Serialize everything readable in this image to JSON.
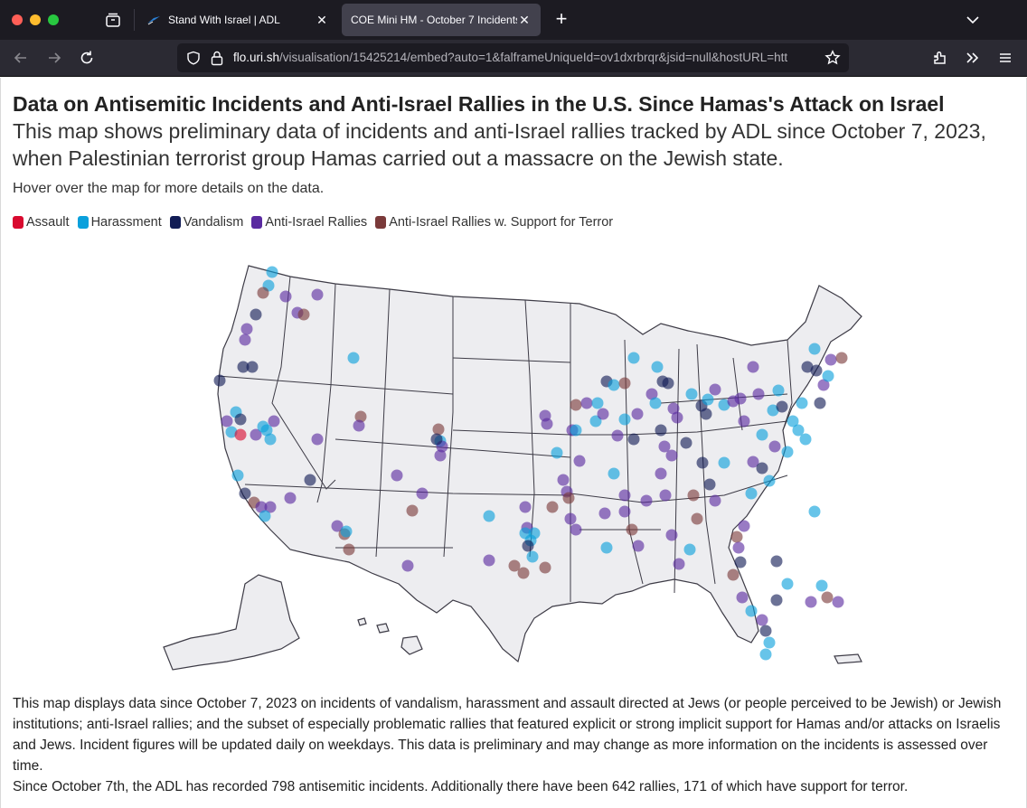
{
  "browser": {
    "tabs": [
      {
        "label": "Stand With Israel | ADL",
        "active": false
      },
      {
        "label": "COE Mini HM - October 7 Incidents",
        "active": true
      }
    ],
    "url_host": "flo.uri.sh",
    "url_path": "/visualisation/15425214/embed?auto=1&falframeUniqueId=ov1dxrbrqr&jsid=null&hostURL=htt"
  },
  "page": {
    "title": "Data on Antisemitic Incidents and Anti-Israel Rallies in the U.S. Since Hamas's Attack on Israel",
    "subtitle": "This map shows preliminary data of incidents and anti-Israel rallies tracked by ADL since October 7, 2023, when Palestinian terrorist group Hamas carried out a massacre on the Jewish state.",
    "hover_note": "Hover over the map for more details on the data.",
    "legend": [
      {
        "label": "Assault",
        "color": "#d90a2f"
      },
      {
        "label": "Harassment",
        "color": "#0aa0dc"
      },
      {
        "label": "Vandalism",
        "color": "#111c55"
      },
      {
        "label": "Anti-Israel Rallies",
        "color": "#5a2aa0"
      },
      {
        "label": "Anti-Israel Rallies w. Support for Terror",
        "color": "#7a3a3a"
      }
    ],
    "description": "This map displays data since October 7, 2023 on incidents of vandalism, harassment and assault directed at Jews (or people perceived to be Jewish) or Jewish institutions; anti-Israel rallies; and the subset of especially problematic rallies that featured explicit or strong implicit support for Hamas and/or attacks on Israelis and Jews. Incident figures will be updated daily on weekdays. This data is preliminary and may change as more information on the incidents is assessed over time.",
    "summary": "Since October 7th, the ADL has recorded 798 antisemitic incidents. Additionally there have been 642 rallies, 171 of which have support for terror."
  }
}
